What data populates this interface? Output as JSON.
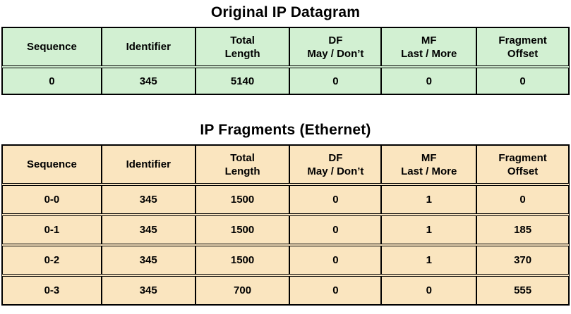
{
  "figure": {
    "background": "#ffffff",
    "border_color": "#000000",
    "text_color": "#000000"
  },
  "tables": [
    {
      "title": "Original IP Datagram",
      "bg_color": "#d2f0d2",
      "headers": [
        "Sequence",
        "Identifier",
        "Total\nLength",
        "DF\nMay / Don’t",
        "MF\nLast / More",
        "Fragment\nOffset"
      ],
      "rows": [
        [
          "0",
          "345",
          "5140",
          "0",
          "0",
          "0"
        ]
      ]
    },
    {
      "title": "IP Fragments (Ethernet)",
      "bg_color": "#fae5bf",
      "headers": [
        "Sequence",
        "Identifier",
        "Total\nLength",
        "DF\nMay / Don’t",
        "MF\nLast / More",
        "Fragment\nOffset"
      ],
      "rows": [
        [
          "0-0",
          "345",
          "1500",
          "0",
          "1",
          "0"
        ],
        [
          "0-1",
          "345",
          "1500",
          "0",
          "1",
          "185"
        ],
        [
          "0-2",
          "345",
          "1500",
          "0",
          "1",
          "370"
        ],
        [
          "0-3",
          "345",
          "700",
          "0",
          "0",
          "555"
        ]
      ]
    }
  ],
  "chart_data": [
    {
      "type": "table",
      "title": "Original IP Datagram",
      "columns": [
        "Sequence",
        "Identifier",
        "Total Length",
        "DF May / Don’t",
        "MF Last / More",
        "Fragment Offset"
      ],
      "rows": [
        [
          "0",
          345,
          5140,
          0,
          0,
          0
        ]
      ]
    },
    {
      "type": "table",
      "title": "IP Fragments (Ethernet)",
      "columns": [
        "Sequence",
        "Identifier",
        "Total Length",
        "DF May / Don’t",
        "MF Last / More",
        "Fragment Offset"
      ],
      "rows": [
        [
          "0-0",
          345,
          1500,
          0,
          1,
          0
        ],
        [
          "0-1",
          345,
          1500,
          0,
          1,
          185
        ],
        [
          "0-2",
          345,
          1500,
          0,
          1,
          370
        ],
        [
          "0-3",
          345,
          700,
          0,
          0,
          555
        ]
      ]
    }
  ]
}
